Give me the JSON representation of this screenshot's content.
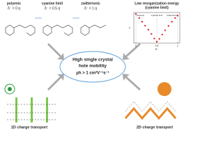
{
  "header": {
    "states": [
      {
        "name": "polyenic",
        "charge": "δ⁻ = 0 q"
      },
      {
        "name": "cyanine limit",
        "charge": "δ⁻ = 0.5 q"
      },
      {
        "name": "zwitterionic",
        "charge": "δ⁻ = 1 q"
      }
    ]
  },
  "center": {
    "line1": "High single crystal",
    "line2": "hole mobility",
    "value": "μh > 1 cm²V⁻¹s⁻¹"
  },
  "bottom": {
    "left": "1D charge transport",
    "right": "2D charge transport"
  },
  "chart_data": {
    "type": "scatter",
    "title": "Low reorganization energy",
    "subtitle": "(cyanine limit)",
    "x_label": "δ⁻",
    "y_label": "λ",
    "annotations": [
      "polyenic",
      "cyanine limit",
      "zwitterionic"
    ],
    "x": [
      0,
      0.08,
      0.15,
      0.22,
      0.3,
      0.37,
      0.44,
      0.5,
      0.56,
      0.63,
      0.7,
      0.78,
      0.86,
      0.94,
      1
    ],
    "values": [
      95,
      82,
      70,
      57,
      44,
      30,
      15,
      5,
      14,
      28,
      42,
      56,
      70,
      82,
      90
    ],
    "color": "#e0202a",
    "xlim": [
      -0.05,
      1.05
    ],
    "ylim": [
      0,
      100
    ],
    "xticks": [
      0,
      0.5,
      1
    ]
  }
}
